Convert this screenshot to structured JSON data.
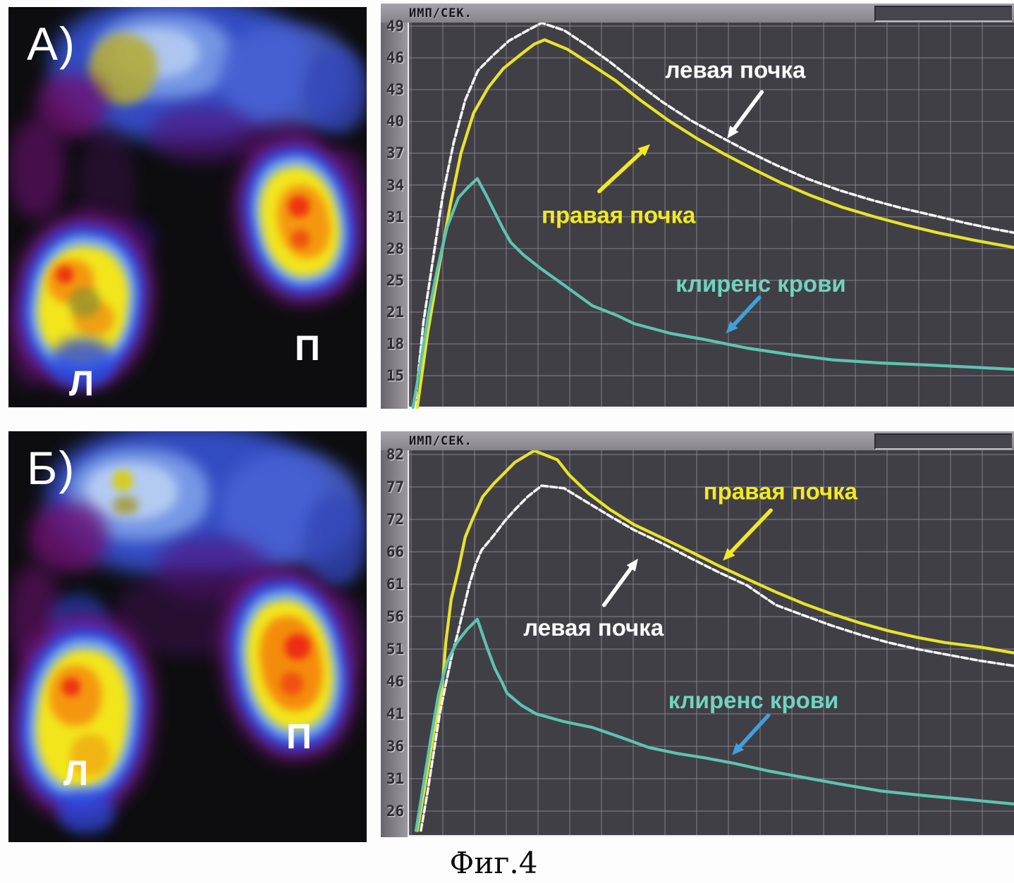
{
  "figure": {
    "caption": "Фиг.4"
  },
  "panels": {
    "a": {
      "label": "А)",
      "left_kidney_label": "Л",
      "right_kidney_label": "П"
    },
    "b": {
      "label": "Б)",
      "left_kidney_label": "Л",
      "right_kidney_label": "П"
    }
  },
  "colors": {
    "left_kidney_curve": "#f5f5f5",
    "right_kidney_curve": "#e8e428",
    "blood_clearance_curve": "#5cc4b0",
    "right_kidney_label": "#f2ea20",
    "blood_clearance_label": "#6fd4c0",
    "left_kidney_label": "#ffffff",
    "clearance_arrow": "#3fa0dc",
    "plot_background": "#413f46",
    "gridline": "#97959f"
  },
  "chart_data": [
    {
      "type": "line",
      "panel": "А",
      "title": "ИМП/СЕК.",
      "ylabel": "ИМП/СЕК. (имп/сек)",
      "xlabel": "",
      "grid": true,
      "y_ticks": [
        49,
        46,
        43,
        40,
        37,
        34,
        31,
        28,
        25,
        21,
        18,
        15
      ],
      "ylim": [
        12,
        50
      ],
      "series": [
        {
          "name": "левая почка",
          "color": "#f5f5f5",
          "dashed": true,
          "points": [
            [
              0.012,
              12
            ],
            [
              0.026,
              20
            ],
            [
              0.042,
              27
            ],
            [
              0.058,
              33
            ],
            [
              0.076,
              38
            ],
            [
              0.095,
              42
            ],
            [
              0.116,
              44.8
            ],
            [
              0.142,
              46.3
            ],
            [
              0.167,
              47.6
            ],
            [
              0.198,
              48.6
            ],
            [
              0.221,
              49.3
            ],
            [
              0.258,
              48.6
            ],
            [
              0.295,
              47.2
            ],
            [
              0.334,
              45.6
            ],
            [
              0.374,
              43.8
            ],
            [
              0.421,
              41.8
            ],
            [
              0.467,
              40.1
            ],
            [
              0.514,
              38.6
            ],
            [
              0.56,
              37.2
            ],
            [
              0.607,
              35.9
            ],
            [
              0.659,
              34.6
            ],
            [
              0.712,
              33.5
            ],
            [
              0.764,
              32.6
            ],
            [
              0.816,
              31.8
            ],
            [
              0.869,
              31.1
            ],
            [
              0.921,
              30.4
            ],
            [
              0.962,
              29.9
            ],
            [
              1.0,
              29.5
            ]
          ]
        },
        {
          "name": "правая почка",
          "color": "#e8e428",
          "dashed": false,
          "points": [
            [
              0.016,
              12
            ],
            [
              0.033,
              19
            ],
            [
              0.051,
              26
            ],
            [
              0.07,
              32
            ],
            [
              0.088,
              37
            ],
            [
              0.109,
              40.8
            ],
            [
              0.133,
              43.2
            ],
            [
              0.158,
              45
            ],
            [
              0.184,
              46.2
            ],
            [
              0.209,
              47.3
            ],
            [
              0.226,
              47.7
            ],
            [
              0.264,
              46.8
            ],
            [
              0.302,
              45.4
            ],
            [
              0.342,
              43.9
            ],
            [
              0.384,
              42
            ],
            [
              0.43,
              40.1
            ],
            [
              0.477,
              38.4
            ],
            [
              0.523,
              36.9
            ],
            [
              0.57,
              35.5
            ],
            [
              0.616,
              34.2
            ],
            [
              0.665,
              33
            ],
            [
              0.717,
              31.9
            ],
            [
              0.77,
              31
            ],
            [
              0.822,
              30.2
            ],
            [
              0.874,
              29.5
            ],
            [
              0.933,
              28.8
            ],
            [
              1.0,
              28.1
            ]
          ]
        },
        {
          "name": "клиренс крови",
          "color": "#5cc4b0",
          "dashed": false,
          "points": [
            [
              0.009,
              12
            ],
            [
              0.021,
              16
            ],
            [
              0.035,
              21
            ],
            [
              0.049,
              26
            ],
            [
              0.065,
              30
            ],
            [
              0.084,
              32.8
            ],
            [
              0.1,
              33.8
            ],
            [
              0.115,
              34.6
            ],
            [
              0.13,
              33
            ],
            [
              0.144,
              31.4
            ],
            [
              0.158,
              29.8
            ],
            [
              0.17,
              28.6
            ],
            [
              0.191,
              27.4
            ],
            [
              0.22,
              26.1
            ],
            [
              0.258,
              24.4
            ],
            [
              0.305,
              21.8
            ],
            [
              0.345,
              20.7
            ],
            [
              0.374,
              19.9
            ],
            [
              0.433,
              19.0
            ],
            [
              0.491,
              18.4
            ],
            [
              0.56,
              17.6
            ],
            [
              0.63,
              17.0
            ],
            [
              0.7,
              16.5
            ],
            [
              0.781,
              16.2
            ],
            [
              0.863,
              16.0
            ],
            [
              0.933,
              15.8
            ],
            [
              1.0,
              15.6
            ]
          ]
        }
      ],
      "annotations": [
        {
          "text": "левая почка",
          "color": "#ffffff",
          "tx": 0.425,
          "ty": 0.143,
          "arrow": [
            0.584,
            0.18,
            0.527,
            0.3
          ],
          "arrow_color": "#ffffff"
        },
        {
          "text": "правая почка",
          "color": "#f2ea20",
          "tx": 0.221,
          "ty": 0.519,
          "arrow": [
            0.316,
            0.437,
            0.4,
            0.315
          ],
          "arrow_color": "#f2ea20"
        },
        {
          "text": "клиренс крови",
          "color": "#6fd4c0",
          "tx": 0.442,
          "ty": 0.697,
          "arrow": [
            0.58,
            0.712,
            0.525,
            0.805
          ],
          "arrow_color": "#3fa0dc"
        }
      ]
    },
    {
      "type": "line",
      "panel": "Б",
      "title": "ИМП/СЕК.",
      "ylabel": "ИМП/СЕК. (имп/сек)",
      "xlabel": "",
      "grid": true,
      "y_ticks": [
        82,
        77,
        72,
        66,
        61,
        56,
        51,
        46,
        41,
        36,
        31,
        26
      ],
      "ylim": [
        22,
        83
      ],
      "series": [
        {
          "name": "правая почка",
          "color": "#e8e428",
          "dashed": false,
          "points": [
            [
              0.016,
              23
            ],
            [
              0.029,
              30
            ],
            [
              0.043,
              38
            ],
            [
              0.057,
              45
            ],
            [
              0.063,
              52
            ],
            [
              0.072,
              58.7
            ],
            [
              0.084,
              63.3
            ],
            [
              0.095,
              68.7
            ],
            [
              0.107,
              72
            ],
            [
              0.124,
              75.5
            ],
            [
              0.142,
              77.5
            ],
            [
              0.157,
              78.9
            ],
            [
              0.177,
              80.8
            ],
            [
              0.209,
              82.6
            ],
            [
              0.247,
              81.2
            ],
            [
              0.266,
              78.9
            ],
            [
              0.297,
              76.1
            ],
            [
              0.334,
              73.5
            ],
            [
              0.374,
              71
            ],
            [
              0.421,
              68.5
            ],
            [
              0.467,
              66
            ],
            [
              0.514,
              63.8
            ],
            [
              0.56,
              61.8
            ],
            [
              0.607,
              59.8
            ],
            [
              0.653,
              58
            ],
            [
              0.7,
              56.4
            ],
            [
              0.747,
              55
            ],
            [
              0.793,
              53.8
            ],
            [
              0.84,
              52.8
            ],
            [
              0.886,
              52
            ],
            [
              0.944,
              51.3
            ],
            [
              1.0,
              50.4
            ]
          ]
        },
        {
          "name": "левая почка",
          "color": "#f5f5f5",
          "dashed": true,
          "points": [
            [
              0.022,
              23
            ],
            [
              0.033,
              29
            ],
            [
              0.043,
              35
            ],
            [
              0.053,
              41
            ],
            [
              0.064,
              46
            ],
            [
              0.073,
              50
            ],
            [
              0.083,
              53.5
            ],
            [
              0.093,
              57.5
            ],
            [
              0.102,
              61
            ],
            [
              0.112,
              64
            ],
            [
              0.122,
              66.3
            ],
            [
              0.142,
              69
            ],
            [
              0.159,
              71.5
            ],
            [
              0.177,
              73.5
            ],
            [
              0.198,
              75.5
            ],
            [
              0.221,
              77.2
            ],
            [
              0.258,
              76.8
            ],
            [
              0.293,
              74.8
            ],
            [
              0.334,
              72.5
            ],
            [
              0.374,
              70
            ],
            [
              0.421,
              67.5
            ],
            [
              0.467,
              65
            ],
            [
              0.514,
              62.8
            ],
            [
              0.56,
              60.8
            ],
            [
              0.607,
              57.8
            ],
            [
              0.653,
              56.2
            ],
            [
              0.7,
              54.6
            ],
            [
              0.747,
              53.2
            ],
            [
              0.793,
              52
            ],
            [
              0.84,
              51
            ],
            [
              0.886,
              50.2
            ],
            [
              0.944,
              49.2
            ],
            [
              1.0,
              48.4
            ]
          ]
        },
        {
          "name": "клиренс крови",
          "color": "#5cc4b0",
          "dashed": false,
          "points": [
            [
              0.014,
              23
            ],
            [
              0.026,
              30
            ],
            [
              0.038,
              37
            ],
            [
              0.051,
              44
            ],
            [
              0.065,
              49
            ],
            [
              0.081,
              52
            ],
            [
              0.098,
              54
            ],
            [
              0.115,
              55.6
            ],
            [
              0.13,
              51.5
            ],
            [
              0.144,
              48
            ],
            [
              0.156,
              45.8
            ],
            [
              0.164,
              44.2
            ],
            [
              0.188,
              42.3
            ],
            [
              0.212,
              41
            ],
            [
              0.258,
              39.8
            ],
            [
              0.305,
              38.9
            ],
            [
              0.351,
              37.4
            ],
            [
              0.398,
              35.8
            ],
            [
              0.444,
              34.9
            ],
            [
              0.491,
              34.2
            ],
            [
              0.537,
              33.4
            ],
            [
              0.595,
              32.2
            ],
            [
              0.653,
              31.2
            ],
            [
              0.712,
              30.2
            ],
            [
              0.781,
              29.1
            ],
            [
              0.851,
              28.4
            ],
            [
              0.921,
              27.8
            ],
            [
              1.0,
              27.1
            ]
          ]
        }
      ],
      "annotations": [
        {
          "text": "правая почка",
          "color": "#f2ea20",
          "tx": 0.488,
          "ty": 0.127,
          "arrow": [
            0.599,
            0.155,
            0.52,
            0.285
          ],
          "arrow_color": "#f2ea20"
        },
        {
          "text": "левая почка",
          "color": "#ffffff",
          "tx": 0.191,
          "ty": 0.479,
          "arrow": [
            0.324,
            0.4,
            0.38,
            0.28
          ],
          "arrow_color": "#ffffff"
        },
        {
          "text": "клиренс крови",
          "color": "#6fd4c0",
          "tx": 0.43,
          "ty": 0.667,
          "arrow": [
            0.595,
            0.685,
            0.535,
            0.788
          ],
          "arrow_color": "#3fa0dc"
        }
      ]
    }
  ]
}
